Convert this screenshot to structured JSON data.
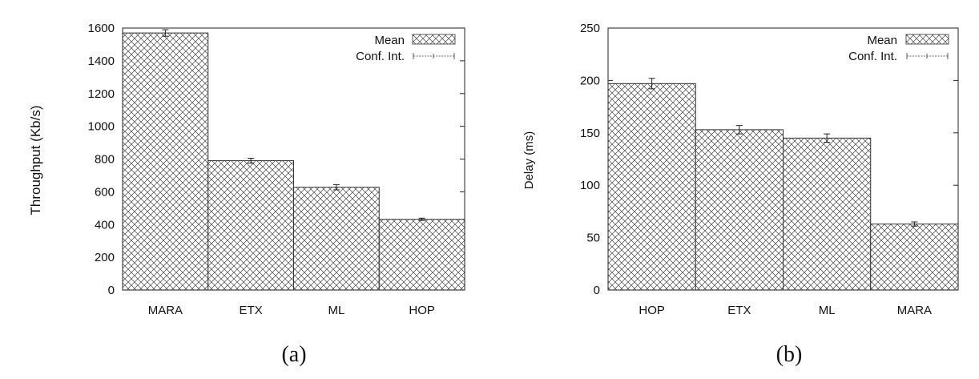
{
  "chart_data": [
    {
      "type": "bar",
      "panel_label": "(a)",
      "categories": [
        "MARA",
        "ETX",
        "ML",
        "HOP"
      ],
      "series": [
        {
          "name": "Mean",
          "values": [
            1570,
            790,
            628,
            432
          ]
        }
      ],
      "conf_int": [
        [
          1550,
          1590
        ],
        [
          775,
          805
        ],
        [
          612,
          644
        ],
        [
          425,
          439
        ]
      ],
      "ylabel": "Throughput (Kb/s)",
      "ylim": [
        0,
        1600
      ],
      "yticks": [
        0,
        200,
        400,
        600,
        800,
        1000,
        1200,
        1400,
        1600
      ],
      "legend": {
        "placement": "top-right",
        "entries": [
          "Mean",
          "Conf. Int."
        ]
      },
      "grid": false
    },
    {
      "type": "bar",
      "panel_label": "(b)",
      "categories": [
        "HOP",
        "ETX",
        "ML",
        "MARA"
      ],
      "series": [
        {
          "name": "Mean",
          "values": [
            197,
            153,
            145,
            63
          ]
        }
      ],
      "conf_int": [
        [
          192,
          202
        ],
        [
          149,
          157
        ],
        [
          141,
          149
        ],
        [
          61,
          65
        ]
      ],
      "ylabel": "Delay (ms)",
      "ylim": [
        0,
        250
      ],
      "yticks": [
        0,
        50,
        100,
        150,
        200,
        250
      ],
      "legend": {
        "placement": "top-right",
        "entries": [
          "Mean",
          "Conf. Int."
        ]
      },
      "grid": false
    }
  ]
}
